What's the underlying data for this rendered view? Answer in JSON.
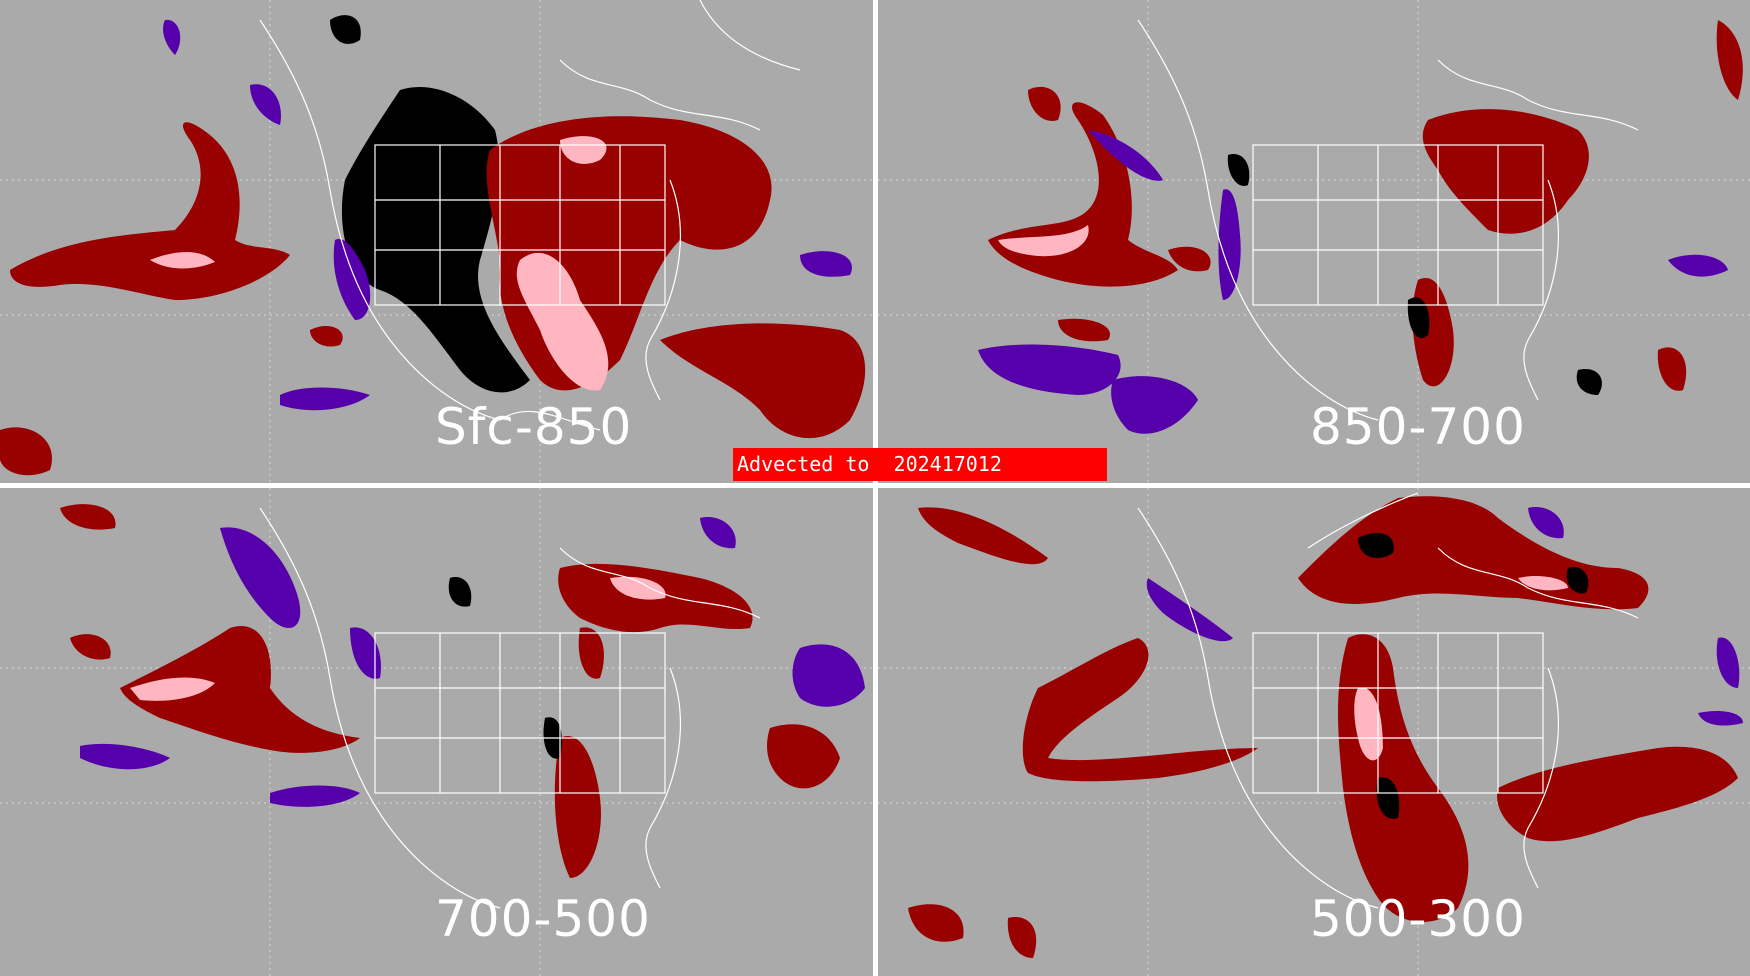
{
  "banner": {
    "text": "Advected to  202417012",
    "color": "#ff0000"
  },
  "colors": {
    "background": "#aaaaaa",
    "dark_red": "#990000",
    "pink": "#ffb6c1",
    "black": "#000000",
    "purple": "#5500aa",
    "map_lines": "#ffffff"
  },
  "panels": [
    {
      "label": "Sfc-850"
    },
    {
      "label": "850-700"
    },
    {
      "label": "700-500"
    },
    {
      "label": "500-300"
    }
  ]
}
